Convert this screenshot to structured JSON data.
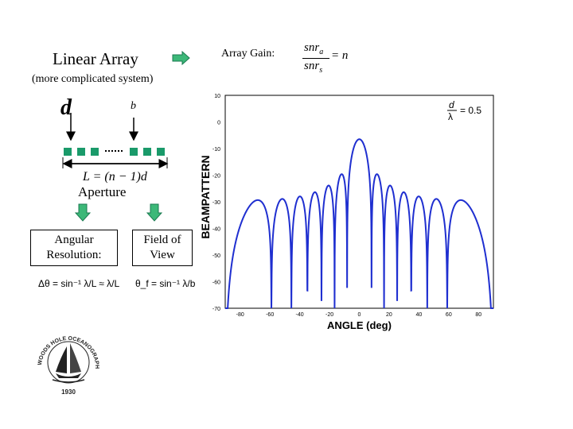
{
  "header": {
    "title": "Linear Array",
    "subtitle": "(more complicated system)",
    "gain_label": "Array Gain:",
    "gain_formula": {
      "num": "snr",
      "num_sub": "a",
      "den": "snr",
      "den_sub": "s",
      "rhs": "= n"
    }
  },
  "diagram": {
    "d_label": "d",
    "b_label": "b",
    "length_formula": "L = (n − 1)d",
    "aperture_label": "Aperture",
    "angular_box": "Angular Resolution:",
    "fov_box": "Field of View",
    "angular_formula": "Δθ = sin⁻¹ λ/L ≈ λ/L",
    "fov_formula": "θ_f = sin⁻¹ λ/b"
  },
  "logo": {
    "text": "WOODS HOLE OCEANOGRAPHIC INSTITUTION",
    "year": "1930"
  },
  "colors": {
    "element_green": "#1a9a6a",
    "arrow_green": "#3cb878",
    "curve_blue": "#1f2fd0"
  },
  "chart_data": {
    "type": "line",
    "title": "",
    "xlabel": "ANGLE (deg)",
    "ylabel": "BEAMPATTERN",
    "xlim": [
      -90,
      90
    ],
    "ylim": [
      -70,
      10
    ],
    "xticks": [
      -80,
      -60,
      -40,
      -20,
      0,
      20,
      40,
      60,
      80
    ],
    "xtick_labels": [
      "-80",
      "-60",
      "-40",
      "-20",
      "0",
      "20",
      "40",
      "60",
      "80"
    ],
    "yticks": [
      10,
      0,
      -10,
      -20,
      -30,
      -40,
      -50,
      -60,
      -70
    ],
    "ytick_labels": [
      "10",
      "0",
      "-10",
      "-20",
      "-30",
      "-40",
      "-50",
      "-60",
      "-70"
    ],
    "annotation": {
      "num": "d",
      "den": "λ",
      "rhs": "= 0.5"
    },
    "series": [
      {
        "name": "beampattern",
        "color": "#1f2fd0",
        "elements": 14,
        "d_over_lambda": 0.5,
        "peak_db": -6.5,
        "null_floor_db": -70
      }
    ]
  }
}
